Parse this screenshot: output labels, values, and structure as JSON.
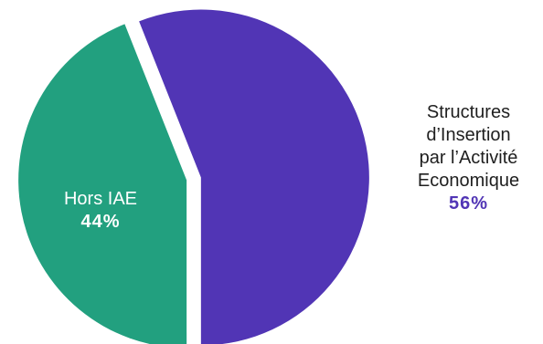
{
  "chart_data": {
    "type": "pie",
    "slices": [
      {
        "key": "siae",
        "label_lines": [
          "Structures",
          "d’Insertion",
          "par l’Activité",
          "Economique"
        ],
        "value": 56,
        "value_label": "56%",
        "color": "#5135b5"
      },
      {
        "key": "hors",
        "label_lines": [
          "Hors IAE"
        ],
        "value": 44,
        "value_label": "44%",
        "color": "#22a07f"
      }
    ],
    "exploded": true
  }
}
